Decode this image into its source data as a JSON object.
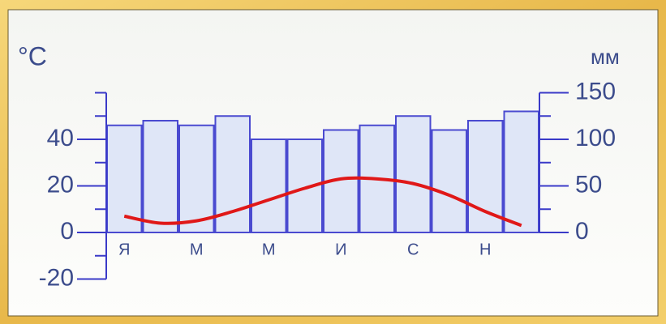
{
  "chart_data": {
    "type": "combo",
    "y_label": "°C",
    "y2_label": "мм",
    "categories": [
      "Я",
      null,
      "М",
      null,
      "М",
      null,
      "И",
      null,
      "С",
      null,
      "Н",
      null
    ],
    "series": [
      {
        "type": "bar",
        "axis": "y2",
        "color": "#dfe6f7",
        "values": [
          115,
          120,
          115,
          125,
          100,
          100,
          110,
          115,
          125,
          110,
          120,
          130
        ]
      },
      {
        "type": "line",
        "color": "#e01818",
        "values": [
          7,
          4,
          5,
          9,
          14,
          19,
          23,
          23,
          21,
          16,
          9,
          3
        ]
      }
    ],
    "ylim": [
      -20,
      60
    ],
    "yticks": [
      -20,
      0,
      20,
      40
    ],
    "y_minor_ticks": [
      -10,
      10,
      30,
      50,
      60
    ],
    "y2lim": [
      0,
      150
    ],
    "y2ticks": [
      0,
      50,
      100,
      150
    ],
    "y2_minor_ticks": [
      25,
      75,
      125
    ]
  }
}
